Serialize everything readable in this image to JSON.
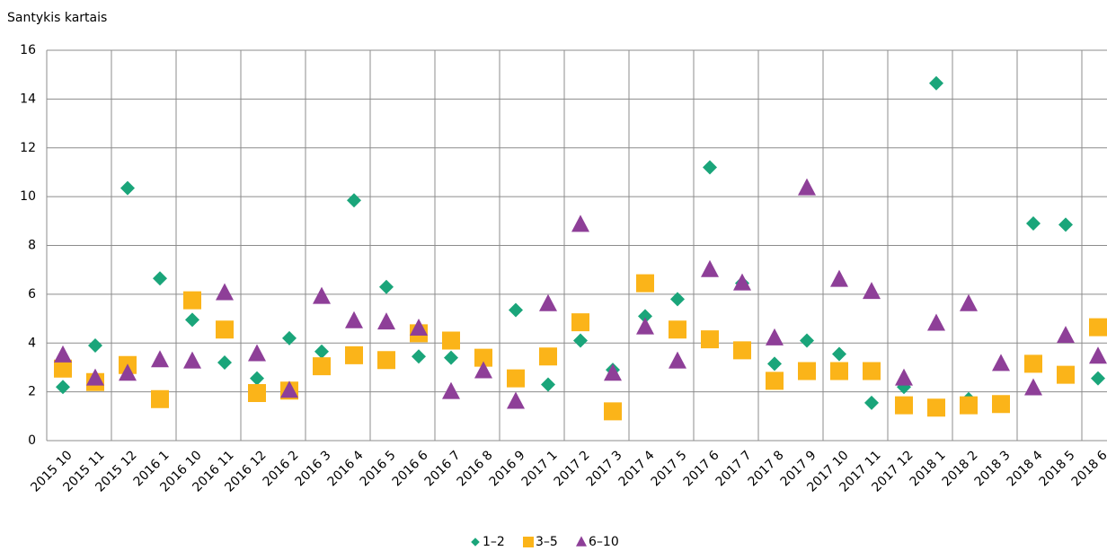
{
  "chart_data": {
    "type": "scatter",
    "y_label": "Santykis kartais",
    "categories": [
      "2015 10",
      "2015 11",
      "2015 12",
      "2016 1",
      "2016 10",
      "2016 11",
      "2016 12",
      "2016 2",
      "2016 3",
      "2016 4",
      "2016 5",
      "2016 6",
      "2016 7",
      "2016 8",
      "2016 9",
      "2017 1",
      "2017 2",
      "2017 3",
      "2017 4",
      "2017 5",
      "2017 6",
      "2017 7",
      "2017 8",
      "2017 9",
      "2017 10",
      "2017 11",
      "2017 12",
      "2018 1",
      "2018 2",
      "2018 3",
      "2018 4",
      "2018 5",
      "2018 6"
    ],
    "series": [
      {
        "name": "1–2",
        "color": "#1aa57a",
        "marker": "diamond",
        "values": [
          2.2,
          3.9,
          10.35,
          6.65,
          4.95,
          3.2,
          2.55,
          4.2,
          3.65,
          9.85,
          6.3,
          3.45,
          3.4,
          null,
          5.35,
          2.3,
          4.1,
          2.9,
          5.1,
          5.8,
          11.2,
          6.45,
          3.15,
          4.1,
          3.55,
          1.55,
          2.2,
          14.65,
          1.7,
          null,
          8.9,
          8.85,
          2.55
        ]
      },
      {
        "name": "3–5",
        "color": "#fbb419",
        "marker": "square",
        "values": [
          2.95,
          2.4,
          3.1,
          1.7,
          5.75,
          4.55,
          1.95,
          2.05,
          3.05,
          3.5,
          3.3,
          4.4,
          4.1,
          3.4,
          2.55,
          3.45,
          4.85,
          1.2,
          6.45,
          4.55,
          4.15,
          3.7,
          2.45,
          2.85,
          2.85,
          2.85,
          1.45,
          1.35,
          1.45,
          1.5,
          3.15,
          2.7,
          4.65
        ]
      },
      {
        "name": "6–10",
        "color": "#8e3f98",
        "marker": "triangle",
        "values": [
          3.5,
          2.55,
          2.75,
          3.3,
          3.25,
          6.05,
          3.55,
          2.05,
          5.9,
          4.9,
          4.85,
          4.6,
          2.0,
          2.85,
          1.6,
          5.6,
          8.85,
          2.75,
          4.65,
          3.25,
          7.0,
          6.45,
          4.2,
          10.35,
          6.6,
          6.1,
          2.55,
          4.8,
          5.6,
          3.15,
          2.15,
          4.3,
          3.45
        ]
      }
    ],
    "ylim": [
      0,
      16
    ],
    "yticks": [
      0,
      2,
      4,
      6,
      8,
      10,
      12,
      14,
      16
    ],
    "grid": true,
    "legend": "bottom"
  }
}
